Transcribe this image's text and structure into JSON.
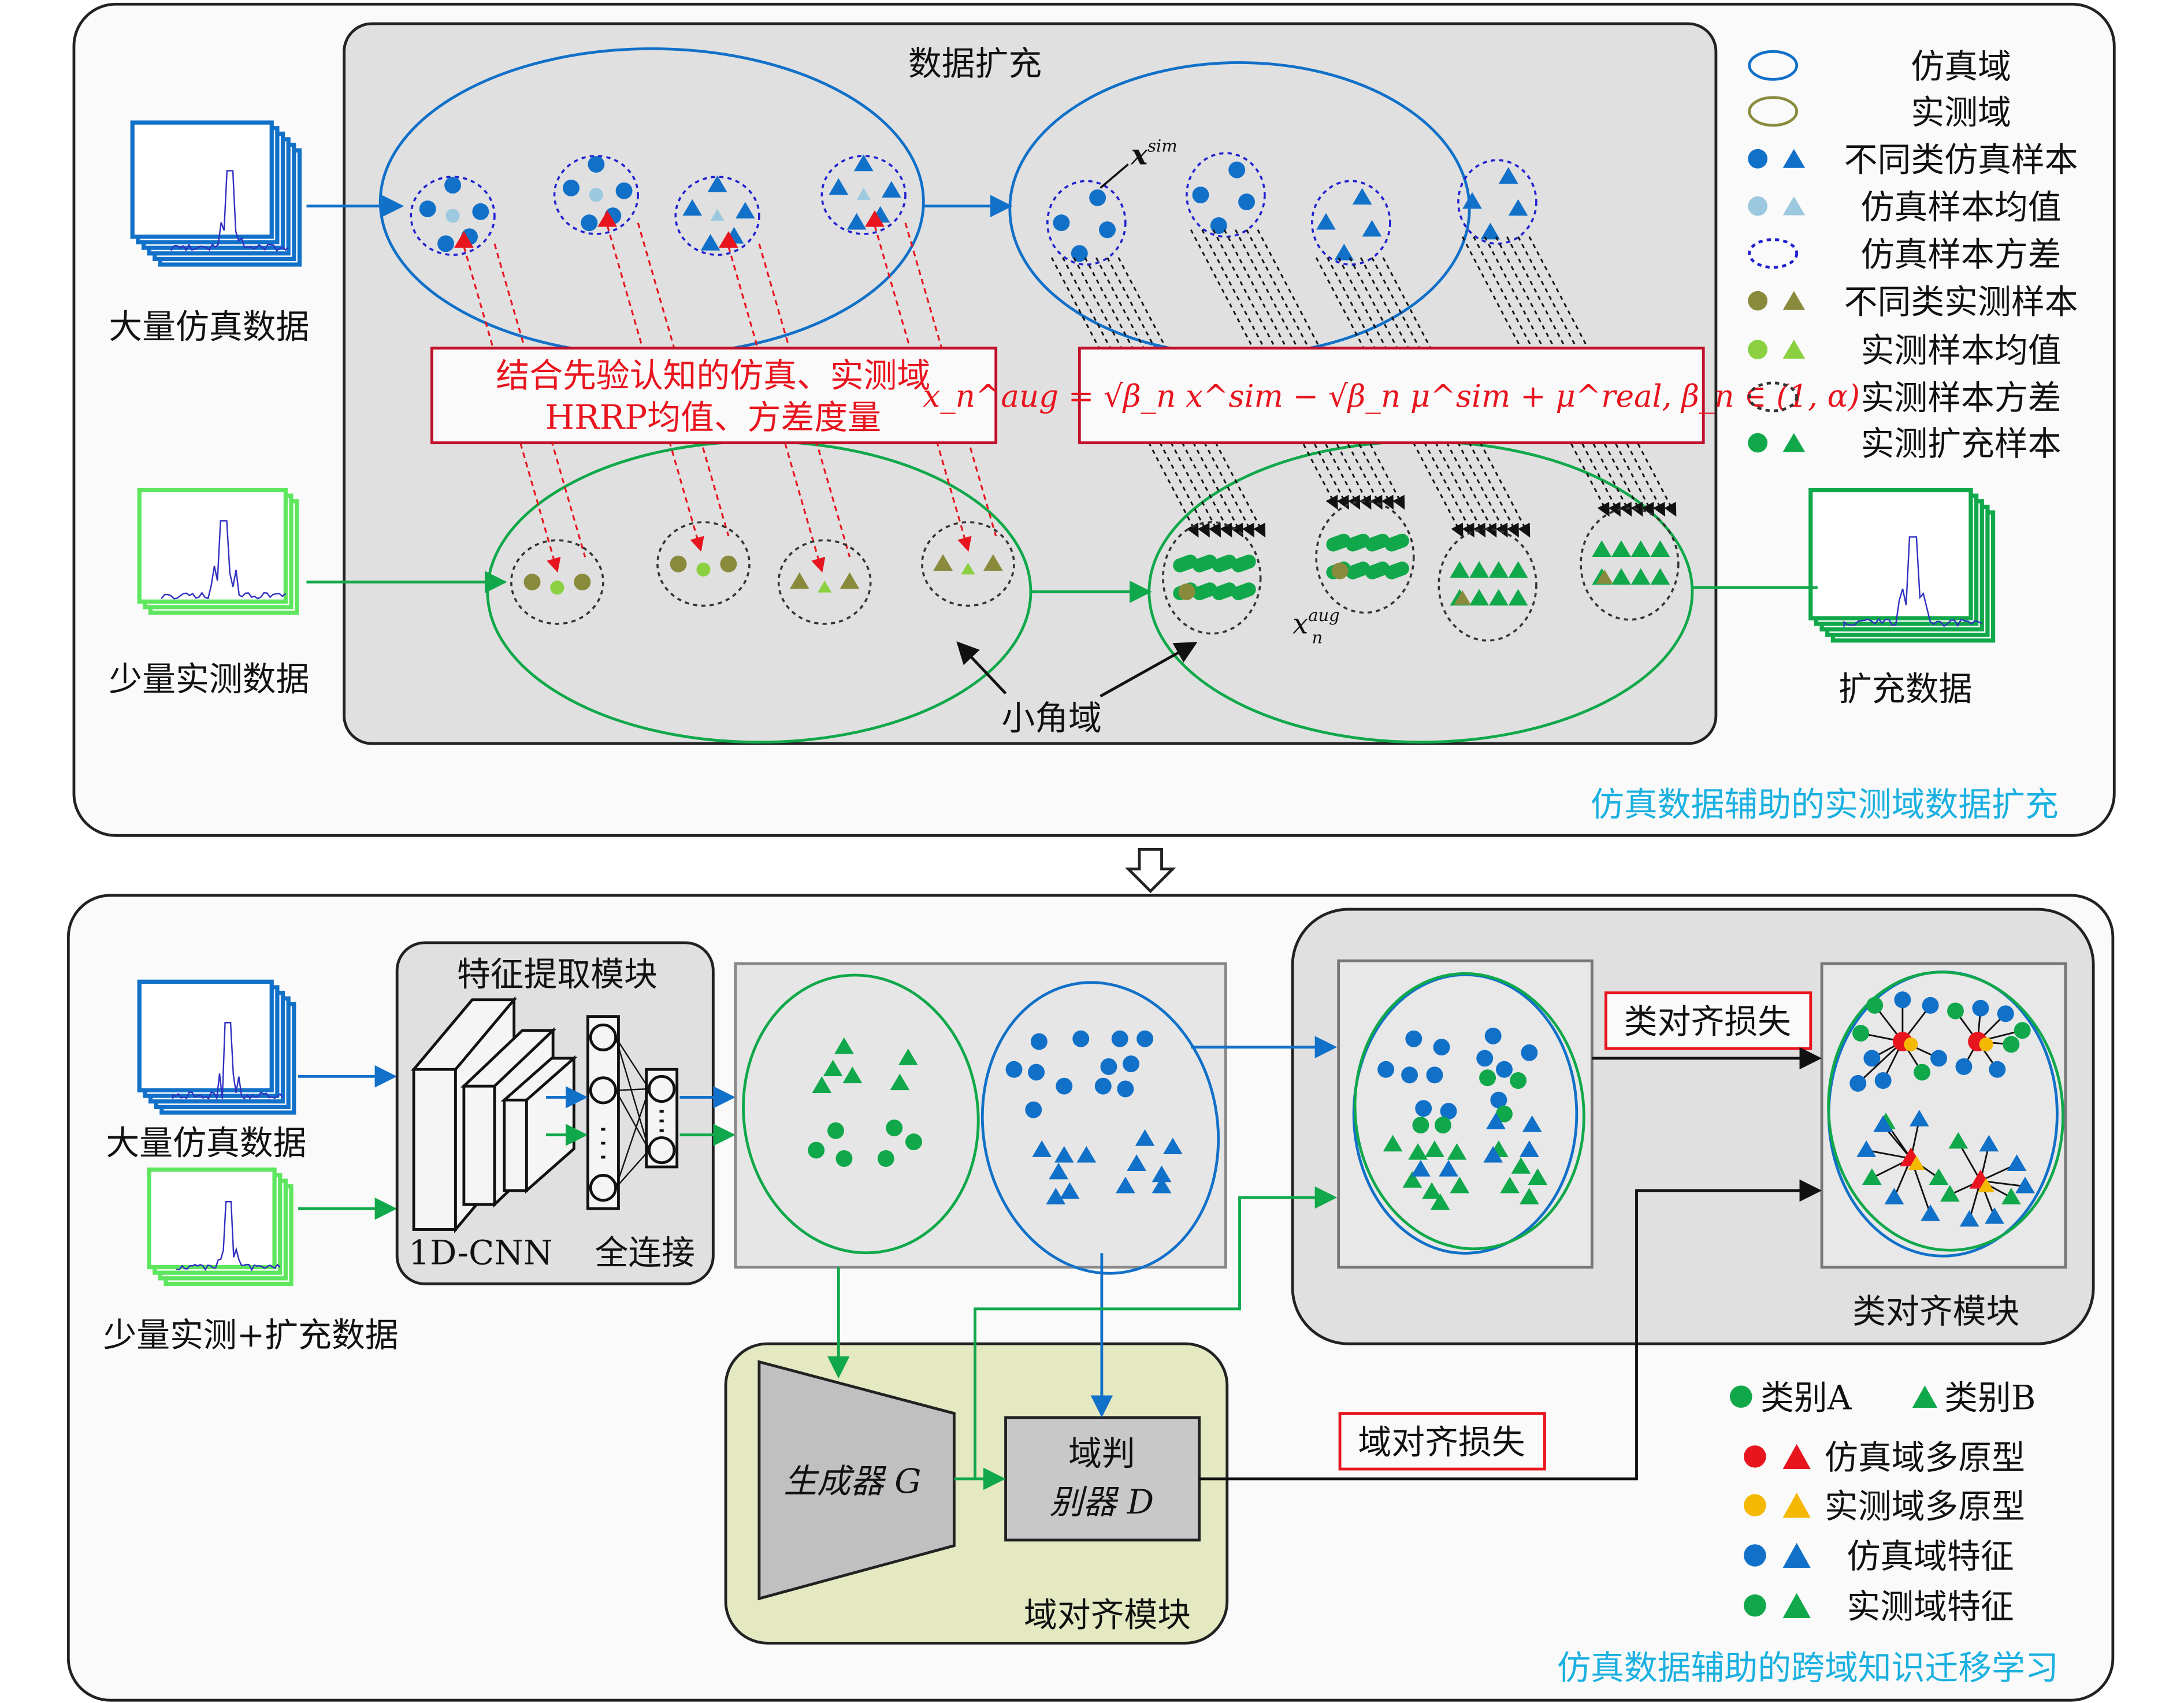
{
  "top": {
    "title": "数据扩充",
    "caption": "仿真数据辅助的实测域数据扩充",
    "sim_data_label": "大量仿真数据",
    "real_data_label": "少量实测数据",
    "expanded_label": "扩充数据",
    "small_angle_label": "小角域",
    "x_sim_label": "x",
    "x_sim_sup": "sim",
    "x_aug_label": "x",
    "x_aug_sub": "n",
    "x_aug_sup": "aug",
    "metric_box": [
      "结合先验认知的仿真、实测域",
      "HRRP均值、方差度量"
    ],
    "formula": "x_n^aug = √β_n x^sim − √β_n μ^sim + μ^real, β_n ∈ (1, α)",
    "legend": [
      {
        "label": "仿真域",
        "symbol": "blue-ellipse"
      },
      {
        "label": "实测域",
        "symbol": "olive-ellipse"
      },
      {
        "label": "不同类仿真样本",
        "symbol": "blue-circle-triangle"
      },
      {
        "label": "仿真样本均值",
        "symbol": "lightblue-circle-triangle"
      },
      {
        "label": "仿真样本方差",
        "symbol": "blue-dotted-ellipse"
      },
      {
        "label": "不同类实测样本",
        "symbol": "olive-circle-triangle"
      },
      {
        "label": "实测样本均值",
        "symbol": "lightgreen-circle-triangle"
      },
      {
        "label": "实测样本方差",
        "symbol": "black-dotted-ellipse"
      },
      {
        "label": "实测扩充样本",
        "symbol": "green-circle-triangle"
      }
    ]
  },
  "bottom": {
    "caption": "仿真数据辅助的跨域知识迁移学习",
    "sim_data_label": "大量仿真数据",
    "real_data_label": "少量实测+扩充数据",
    "feature_module_title": "特征提取模块",
    "cnn_label": "1D-CNN",
    "fc_label": "全连接",
    "class_loss_label": "类对齐损失",
    "class_module_label": "类对齐模块",
    "generator_label": "生成器 G",
    "discriminator_label": [
      "域判",
      "别器 D"
    ],
    "domain_loss_label": "域对齐损失",
    "domain_module_label": "域对齐模块",
    "legend": {
      "class_a": "类别A",
      "class_b": "类别B",
      "rows": [
        "仿真域多原型",
        "实测域多原型",
        "仿真域特征",
        "实测域特征"
      ]
    }
  },
  "colors": {
    "sim_blue": "#1170c8",
    "real_green": "#10a84a",
    "olive": "#8a8a3c",
    "red": "#e8141e",
    "orange": "#f5b800",
    "caption_cyan": "#1ab0e0",
    "panel_gray": "#e0e0e0",
    "domain_module_fill": "#e4e9c2"
  }
}
